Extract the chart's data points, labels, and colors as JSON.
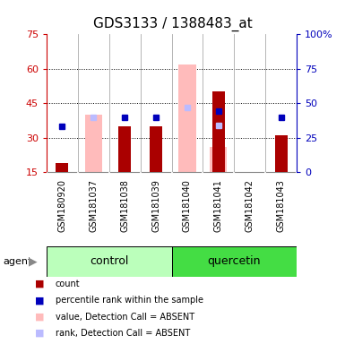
{
  "title": "GDS3133 / 1388483_at",
  "samples": [
    "GSM180920",
    "GSM181037",
    "GSM181038",
    "GSM181039",
    "GSM181040",
    "GSM181041",
    "GSM181042",
    "GSM181043"
  ],
  "count_data": [
    19,
    null,
    35,
    35,
    null,
    50,
    null,
    31
  ],
  "percentile_data": [
    33,
    null,
    40,
    40,
    null,
    44,
    null,
    40
  ],
  "absent_value_data": [
    null,
    40,
    null,
    null,
    62,
    26,
    null,
    null
  ],
  "absent_rank_data": [
    null,
    40,
    null,
    null,
    47,
    34,
    null,
    null
  ],
  "ylim_left": [
    15,
    75
  ],
  "ylim_right": [
    0,
    100
  ],
  "yticks_left": [
    15,
    30,
    45,
    60,
    75
  ],
  "yticks_right": [
    0,
    25,
    50,
    75,
    100
  ],
  "left_axis_color": "#cc0000",
  "right_axis_color": "#0000bb",
  "plot_bg": "#ffffff",
  "count_color": "#aa0000",
  "percentile_color": "#0000bb",
  "absent_value_color": "#ffbbbb",
  "absent_rank_color": "#bbbbff",
  "bar_width": 0.4,
  "absent_bar_width": 0.55,
  "grid_color": "black",
  "vline_color": "#aaaaaa",
  "sample_box_color": "#cccccc",
  "ctrl_color": "#bbffbb",
  "quer_color": "#44dd44",
  "legend_items": [
    {
      "color": "#aa0000",
      "label": "count"
    },
    {
      "color": "#0000bb",
      "label": "percentile rank within the sample"
    },
    {
      "color": "#ffbbbb",
      "label": "value, Detection Call = ABSENT"
    },
    {
      "color": "#bbbbff",
      "label": "rank, Detection Call = ABSENT"
    }
  ]
}
